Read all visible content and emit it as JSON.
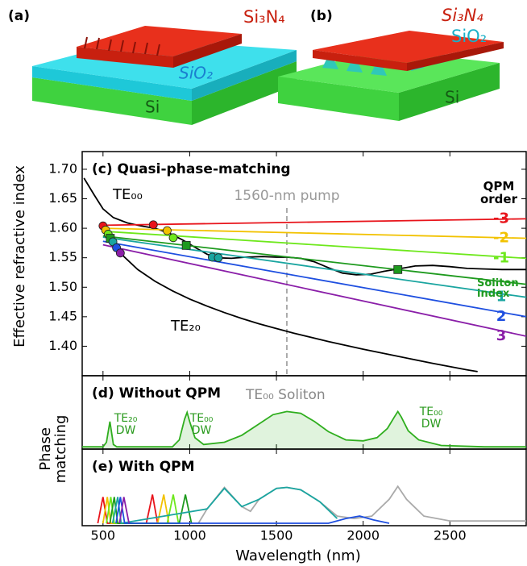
{
  "figure": {
    "a": {
      "label": "(a)",
      "top": "Si₃N₄",
      "middle": "SiO₂",
      "bottom": "Si"
    },
    "b": {
      "label": "(b)",
      "top": "Si₃N₄",
      "middle": "SiO₂",
      "bottom": "Si"
    }
  },
  "chart_data": [
    {
      "type": "line",
      "title": "(c)  Quasi-phase-matching",
      "ylabel": "Effective refractive index",
      "legend_title": "QPM order",
      "xlim": [
        380,
        2940
      ],
      "xticks": [
        500,
        1000,
        1500,
        2000,
        2500
      ],
      "ylim": [
        1.35,
        1.73
      ],
      "yticks": [
        {
          "value": 1.4,
          "label": "1.40"
        },
        1.45,
        {
          "value": 1.5,
          "label": "1.50"
        },
        1.55,
        {
          "value": 1.6,
          "label": "1.60"
        },
        1.65,
        {
          "value": 1.7,
          "label": "1.70"
        }
      ],
      "pump": {
        "x": 1560,
        "label": "1560-nm pump"
      },
      "series": [
        {
          "name": "TE₀₀",
          "color": "#000000",
          "x": [
            390,
            450,
            500,
            560,
            640,
            720,
            800,
            880,
            960,
            1040,
            1100,
            1160,
            1240,
            1320,
            1420,
            1500,
            1560,
            1640,
            1720,
            1800,
            1880,
            1960,
            2040,
            2120,
            2200,
            2300,
            2400,
            2500,
            2600,
            2700,
            2800,
            2940
          ],
          "values": [
            1.685,
            1.656,
            1.633,
            1.618,
            1.609,
            1.604,
            1.6,
            1.592,
            1.58,
            1.566,
            1.556,
            1.55,
            1.549,
            1.551,
            1.552,
            1.551,
            1.551,
            1.549,
            1.543,
            1.533,
            1.524,
            1.521,
            1.522,
            1.527,
            1.531,
            1.536,
            1.537,
            1.535,
            1.532,
            1.531,
            1.53,
            1.53
          ]
        },
        {
          "name": "TE₂₀",
          "color": "#000000",
          "x": [
            500,
            560,
            620,
            700,
            800,
            900,
            1000,
            1100,
            1200,
            1300,
            1400,
            1500,
            1600,
            1800,
            2000,
            2200,
            2400,
            2600,
            2660
          ],
          "values": [
            1.598,
            1.575,
            1.552,
            1.53,
            1.51,
            1.494,
            1.48,
            1.468,
            1.457,
            1.447,
            1.438,
            1.43,
            1.422,
            1.408,
            1.395,
            1.383,
            1.371,
            1.36,
            1.357
          ]
        },
        {
          "name": "-3",
          "color": "#e8141b",
          "x": [
            500,
            2940
          ],
          "values": [
            1.605,
            1.616
          ],
          "markers": {
            "shape": "circle",
            "x": [
              500,
              790
            ],
            "y": [
              1.604,
              1.606
            ]
          }
        },
        {
          "name": "-2",
          "color": "#f2c200",
          "x": [
            500,
            2940
          ],
          "values": [
            1.6,
            1.583
          ],
          "markers": {
            "shape": "circle",
            "x": [
              515,
              870
            ],
            "y": [
              1.597,
              1.596
            ]
          }
        },
        {
          "name": "-1",
          "color": "#6ee81c",
          "x": [
            500,
            2940
          ],
          "values": [
            1.595,
            1.549
          ],
          "markers": {
            "shape": "circle",
            "x": [
              530,
              905
            ],
            "y": [
              1.59,
              1.584
            ]
          }
        },
        {
          "name": "Soliton index",
          "color": "#1e9a1e",
          "x": [
            500,
            2940
          ],
          "values": [
            1.587,
            1.505
          ],
          "markers": {
            "shape": "square",
            "x": [
              542,
              980,
              2200
            ],
            "y": [
              1.583,
              1.571,
              1.53
            ]
          }
        },
        {
          "name": "1",
          "color": "#1aa5a0",
          "x": [
            500,
            2940
          ],
          "values": [
            1.585,
            1.483
          ],
          "markers": {
            "shape": "circle",
            "x": [
              557,
              1130,
              1165
            ],
            "y": [
              1.577,
              1.551,
              1.55
            ]
          }
        },
        {
          "name": "2",
          "color": "#1e4fe0",
          "x": [
            500,
            2940
          ],
          "values": [
            1.578,
            1.45
          ],
          "markers": {
            "shape": "circle",
            "x": [
              578
            ],
            "y": [
              1.567
            ]
          }
        },
        {
          "name": "3",
          "color": "#8a1ea8",
          "x": [
            500,
            2940
          ],
          "values": [
            1.572,
            1.417
          ],
          "markers": {
            "shape": "circle",
            "x": [
              600
            ],
            "y": [
              1.558
            ]
          }
        }
      ]
    },
    {
      "type": "line",
      "title": "(d)  Without QPM",
      "ylabel": "Phase matching",
      "annotations": [
        "TE₀₀ Soliton",
        "TE₂₀ DW",
        "TE₀₀ DW",
        "TE₀₀ DW"
      ],
      "xlim": [
        380,
        2940
      ],
      "xticks": [
        500,
        1000,
        1500,
        2000,
        2500
      ],
      "ylim": [
        0,
        1.6
      ],
      "fill": true,
      "series": [
        {
          "color": "#2fae1e",
          "x": [
            380,
            500,
            520,
            540,
            560,
            580,
            900,
            940,
            970,
            985,
            1000,
            1030,
            1080,
            1200,
            1300,
            1400,
            1480,
            1560,
            1640,
            1720,
            1800,
            1900,
            2000,
            2080,
            2140,
            2180,
            2200,
            2220,
            2260,
            2320,
            2450,
            2700,
            2940
          ],
          "values": [
            0.05,
            0.05,
            0.15,
            0.6,
            0.1,
            0.05,
            0.05,
            0.2,
            0.65,
            0.8,
            0.6,
            0.25,
            0.1,
            0.15,
            0.3,
            0.55,
            0.75,
            0.82,
            0.78,
            0.6,
            0.38,
            0.2,
            0.18,
            0.25,
            0.45,
            0.7,
            0.82,
            0.7,
            0.4,
            0.2,
            0.08,
            0.05,
            0.05
          ]
        }
      ]
    },
    {
      "type": "line",
      "title": "(e)  With QPM",
      "xlabel": "Wavelength (nm)",
      "xlim": [
        380,
        2940
      ],
      "xticks": [
        500,
        1000,
        1500,
        2000,
        2500
      ],
      "ylim": [
        0,
        1.6
      ],
      "series": [
        {
          "color": "#aaaaaa",
          "x": [
            1050,
            1100,
            1200,
            1300,
            1350,
            1400,
            1500,
            1560,
            1640,
            1750,
            1850,
            1950,
            2050,
            2150,
            2200,
            2250,
            2350,
            2500,
            2940
          ],
          "values": [
            0.05,
            0.35,
            0.8,
            0.4,
            0.3,
            0.55,
            0.78,
            0.8,
            0.75,
            0.5,
            0.2,
            0.15,
            0.2,
            0.55,
            0.82,
            0.55,
            0.2,
            0.1,
            0.1
          ]
        },
        {
          "color": "#e8141b",
          "x": [
            470,
            500,
            525,
            750,
            785,
            815
          ],
          "values": [
            0.05,
            0.6,
            0.05,
            0.05,
            0.65,
            0.05
          ]
        },
        {
          "color": "#f2c200",
          "x": [
            500,
            525,
            545,
            815,
            850,
            880
          ],
          "values": [
            0.05,
            0.6,
            0.05,
            0.05,
            0.65,
            0.05
          ]
        },
        {
          "color": "#6ee81c",
          "x": [
            520,
            545,
            565,
            870,
            905,
            935
          ],
          "values": [
            0.05,
            0.6,
            0.05,
            0.05,
            0.65,
            0.05
          ]
        },
        {
          "color": "#1e9a1e",
          "x": [
            540,
            565,
            585,
            940,
            975,
            1010
          ],
          "values": [
            0.05,
            0.6,
            0.05,
            0.05,
            0.65,
            0.05
          ]
        },
        {
          "color": "#1aa5a0",
          "x": [
            555,
            585,
            605,
            1100,
            1200,
            1300,
            1400,
            1500,
            1560,
            1640,
            1750,
            1850
          ],
          "values": [
            0.05,
            0.6,
            0.05,
            0.35,
            0.78,
            0.4,
            0.55,
            0.78,
            0.8,
            0.75,
            0.5,
            0.15
          ]
        },
        {
          "color": "#1e4fe0",
          "x": [
            575,
            600,
            625,
            1800,
            1900,
            1980,
            2060,
            2150
          ],
          "values": [
            0.05,
            0.6,
            0.05,
            0.05,
            0.15,
            0.2,
            0.12,
            0.05
          ]
        },
        {
          "color": "#8a1ea8",
          "x": [
            595,
            620,
            650
          ],
          "values": [
            0.05,
            0.6,
            0.05
          ]
        }
      ]
    }
  ]
}
